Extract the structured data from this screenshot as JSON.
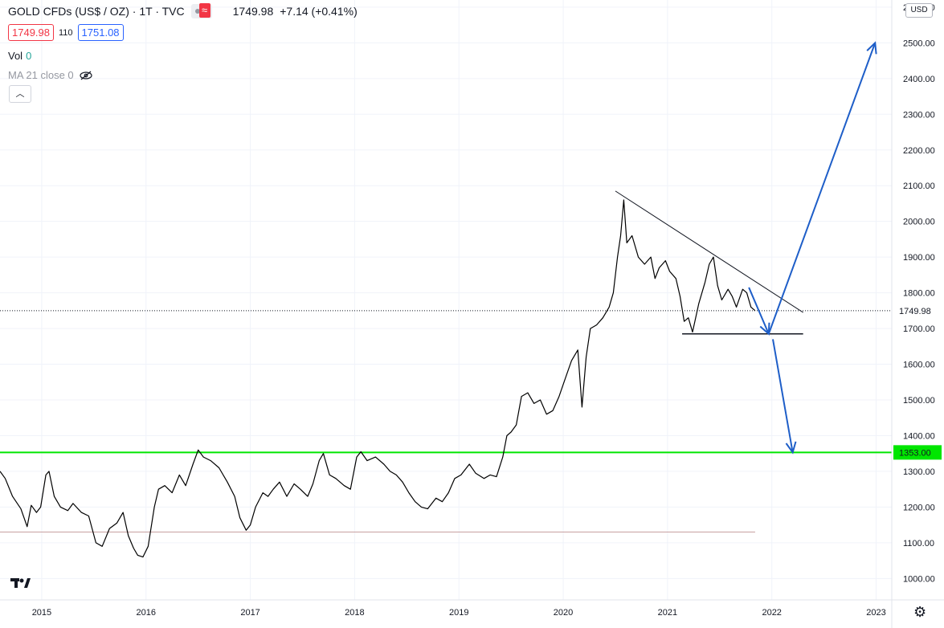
{
  "header": {
    "symbol": "GOLD CFDs (US$ / OZ) · 1T · TVC",
    "last_price": "1749.98",
    "change": "+7.14 (+0.41%)",
    "bid": "1749.98",
    "spread": "110",
    "ask": "1751.08",
    "vol_label": "Vol",
    "vol_value": "0",
    "ma_label": "MA 21 close 0",
    "currency_button": "USD"
  },
  "colors": {
    "price_line": "#000000",
    "support_line": "#00e600",
    "arrow": "#1e5ec8",
    "grid": "#f0f3fa"
  },
  "chart_data": {
    "type": "line",
    "title": "GOLD CFDs (US$ / OZ)",
    "xlabel": "",
    "ylabel": "",
    "x_ticks": [
      "2015",
      "2016",
      "2017",
      "2018",
      "2019",
      "2020",
      "2021",
      "2022",
      "2023"
    ],
    "y_ticks": [
      "1000.00",
      "1100.00",
      "1200.00",
      "1300.00",
      "1400.00",
      "1500.00",
      "1600.00",
      "1700.00",
      "1800.00",
      "1900.00",
      "2000.00",
      "2100.00",
      "2200.00",
      "2300.00",
      "2400.00",
      "2500.00",
      "2600.00"
    ],
    "ylim": [
      940,
      2620
    ],
    "xlim": [
      2014.6,
      2023.15
    ],
    "grid": true,
    "series": [
      {
        "values": [
          [
            2014.6,
            1300
          ],
          [
            2014.65,
            1280
          ],
          [
            2014.72,
            1230
          ],
          [
            2014.8,
            1195
          ],
          [
            2014.86,
            1145
          ],
          [
            2014.9,
            1205
          ],
          [
            2014.95,
            1185
          ],
          [
            2014.99,
            1200
          ],
          [
            2015.04,
            1290
          ],
          [
            2015.07,
            1300
          ],
          [
            2015.12,
            1230
          ],
          [
            2015.18,
            1200
          ],
          [
            2015.25,
            1190
          ],
          [
            2015.3,
            1210
          ],
          [
            2015.38,
            1185
          ],
          [
            2015.45,
            1175
          ],
          [
            2015.52,
            1100
          ],
          [
            2015.58,
            1090
          ],
          [
            2015.65,
            1140
          ],
          [
            2015.72,
            1155
          ],
          [
            2015.78,
            1185
          ],
          [
            2015.83,
            1120
          ],
          [
            2015.88,
            1085
          ],
          [
            2015.92,
            1065
          ],
          [
            2015.97,
            1060
          ],
          [
            2016.02,
            1090
          ],
          [
            2016.08,
            1200
          ],
          [
            2016.12,
            1250
          ],
          [
            2016.18,
            1260
          ],
          [
            2016.25,
            1240
          ],
          [
            2016.32,
            1290
          ],
          [
            2016.38,
            1260
          ],
          [
            2016.45,
            1320
          ],
          [
            2016.5,
            1360
          ],
          [
            2016.55,
            1340
          ],
          [
            2016.62,
            1330
          ],
          [
            2016.7,
            1310
          ],
          [
            2016.78,
            1270
          ],
          [
            2016.85,
            1230
          ],
          [
            2016.9,
            1170
          ],
          [
            2016.96,
            1135
          ],
          [
            2017.0,
            1150
          ],
          [
            2017.05,
            1200
          ],
          [
            2017.12,
            1240
          ],
          [
            2017.17,
            1230
          ],
          [
            2017.22,
            1250
          ],
          [
            2017.28,
            1270
          ],
          [
            2017.35,
            1230
          ],
          [
            2017.42,
            1265
          ],
          [
            2017.48,
            1250
          ],
          [
            2017.55,
            1230
          ],
          [
            2017.6,
            1265
          ],
          [
            2017.66,
            1330
          ],
          [
            2017.7,
            1350
          ],
          [
            2017.76,
            1290
          ],
          [
            2017.82,
            1280
          ],
          [
            2017.9,
            1260
          ],
          [
            2017.96,
            1250
          ],
          [
            2018.02,
            1340
          ],
          [
            2018.06,
            1355
          ],
          [
            2018.12,
            1330
          ],
          [
            2018.2,
            1340
          ],
          [
            2018.28,
            1320
          ],
          [
            2018.34,
            1300
          ],
          [
            2018.4,
            1290
          ],
          [
            2018.46,
            1270
          ],
          [
            2018.52,
            1240
          ],
          [
            2018.58,
            1215
          ],
          [
            2018.64,
            1200
          ],
          [
            2018.7,
            1195
          ],
          [
            2018.78,
            1225
          ],
          [
            2018.84,
            1215
          ],
          [
            2018.9,
            1240
          ],
          [
            2018.96,
            1280
          ],
          [
            2019.02,
            1290
          ],
          [
            2019.1,
            1320
          ],
          [
            2019.16,
            1295
          ],
          [
            2019.24,
            1280
          ],
          [
            2019.3,
            1290
          ],
          [
            2019.36,
            1285
          ],
          [
            2019.42,
            1340
          ],
          [
            2019.46,
            1400
          ],
          [
            2019.5,
            1410
          ],
          [
            2019.55,
            1430
          ],
          [
            2019.6,
            1510
          ],
          [
            2019.66,
            1520
          ],
          [
            2019.72,
            1490
          ],
          [
            2019.78,
            1500
          ],
          [
            2019.84,
            1460
          ],
          [
            2019.9,
            1470
          ],
          [
            2019.96,
            1510
          ],
          [
            2020.02,
            1560
          ],
          [
            2020.08,
            1610
          ],
          [
            2020.14,
            1640
          ],
          [
            2020.18,
            1480
          ],
          [
            2020.22,
            1620
          ],
          [
            2020.26,
            1700
          ],
          [
            2020.32,
            1710
          ],
          [
            2020.38,
            1730
          ],
          [
            2020.44,
            1760
          ],
          [
            2020.48,
            1800
          ],
          [
            2020.52,
            1900
          ],
          [
            2020.55,
            1960
          ],
          [
            2020.58,
            2060
          ],
          [
            2020.61,
            1940
          ],
          [
            2020.66,
            1960
          ],
          [
            2020.72,
            1900
          ],
          [
            2020.78,
            1880
          ],
          [
            2020.84,
            1900
          ],
          [
            2020.88,
            1840
          ],
          [
            2020.92,
            1870
          ],
          [
            2020.98,
            1890
          ],
          [
            2021.02,
            1860
          ],
          [
            2021.08,
            1840
          ],
          [
            2021.12,
            1790
          ],
          [
            2021.16,
            1720
          ],
          [
            2021.2,
            1730
          ],
          [
            2021.24,
            1690
          ],
          [
            2021.3,
            1770
          ],
          [
            2021.36,
            1830
          ],
          [
            2021.4,
            1880
          ],
          [
            2021.44,
            1900
          ],
          [
            2021.48,
            1820
          ],
          [
            2021.52,
            1780
          ],
          [
            2021.58,
            1810
          ],
          [
            2021.62,
            1790
          ],
          [
            2021.66,
            1760
          ],
          [
            2021.72,
            1810
          ],
          [
            2021.76,
            1800
          ],
          [
            2021.8,
            1760
          ],
          [
            2021.84,
            1750
          ]
        ]
      }
    ],
    "annotations": {
      "price_label": "1749.98",
      "support_label": "1353.00"
    }
  }
}
